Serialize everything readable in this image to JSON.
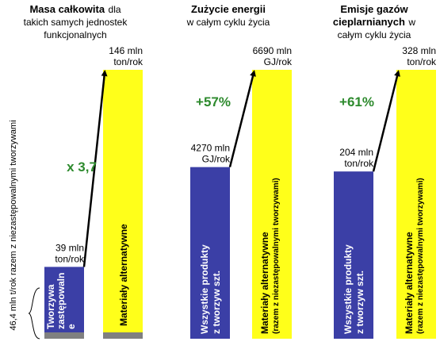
{
  "colors": {
    "blue": "#3b3fa6",
    "yellow": "#ffff1a",
    "gray": "#808080",
    "green": "#2d8a2d",
    "arrow": "#000000"
  },
  "chart_data": [
    {
      "type": "bar",
      "title_bold": "Masa całkowita",
      "title_rest": [
        "dla",
        "takich samych jednostek",
        "funkcjonalnych"
      ],
      "categories": [
        "Tworzywa zastępowalne",
        "Materiały alternatywne"
      ],
      "values": [
        39,
        146
      ],
      "value_labels": [
        [
          "39 mln",
          "ton/rok"
        ],
        [
          "146 mln",
          "ton/rok"
        ]
      ],
      "bar_texts": [
        [
          "Tworzywa",
          "zastępowaln",
          "e"
        ],
        [
          "Materiały alternatywne"
        ]
      ],
      "change_label": "x 3,7",
      "unit": "mln ton/rok",
      "base_segment": true
    },
    {
      "type": "bar",
      "title_bold": "Zużycie energii",
      "title_rest": [
        "w całym cyklu życia"
      ],
      "categories": [
        "Wszystkie produkty z tworzyw szt.",
        "Materiały alternatywne (razem z niezastępowalnymi tworzywami)"
      ],
      "values": [
        4270,
        6690
      ],
      "value_labels": [
        [
          "4270 mln",
          "GJ/rok"
        ],
        [
          "6690 mln",
          "GJ/rok"
        ]
      ],
      "bar_texts": [
        [
          "Wszystkie produkty",
          "z tworzyw szt."
        ],
        [
          "Materiały alternatywne",
          "(razem z niezastępowalnymi tworzywami)"
        ]
      ],
      "change_label": "+57%",
      "unit": "mln GJ/rok"
    },
    {
      "type": "bar",
      "title_bold": [
        "Emisje gazów",
        "cieplarnianych"
      ],
      "title_inline_rest": "w",
      "title_rest": [
        "całym cyklu życia"
      ],
      "categories": [
        "Wszystkie produkty z tworzyw szt.",
        "Materiały alternatywne (razem z niezastępowalnymi tworzywami)"
      ],
      "values": [
        204,
        328
      ],
      "value_labels": [
        [
          "204 mln",
          "ton/rok"
        ],
        [
          "328 mln",
          "ton/rok"
        ]
      ],
      "bar_texts": [
        [
          "Wszystkie produkty",
          "z tworzyw szt."
        ],
        [
          "Materiały alternatywne",
          "(razem z niezastępowalnymi tworzywami)"
        ]
      ],
      "change_label": "+61%",
      "unit": "mln ton/rok"
    }
  ],
  "side_annotation": "46,4 mln t/rok razem z niezastępowalnymi tworzywami"
}
